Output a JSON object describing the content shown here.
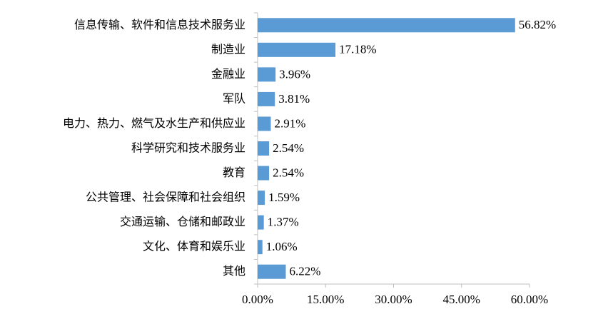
{
  "chart_data": {
    "type": "bar",
    "orientation": "horizontal",
    "categories": [
      "信息传输、软件和信息技术服务业",
      "制造业",
      "金融业",
      "军队",
      "电力、热力、燃气及水生产和供应业",
      "科学研究和技术服务业",
      "教育",
      "公共管理、社会保障和社会组织",
      "交通运输、仓储和邮政业",
      "文化、体育和娱乐业",
      "其他"
    ],
    "values": [
      56.82,
      17.18,
      3.96,
      3.81,
      2.91,
      2.54,
      2.54,
      1.59,
      1.37,
      1.06,
      6.22
    ],
    "value_labels": [
      "56.82%",
      "17.18%",
      "3.96%",
      "3.81%",
      "2.91%",
      "2.54%",
      "2.54%",
      "1.59%",
      "1.37%",
      "1.06%",
      "6.22%"
    ],
    "color": "#5b9bd5",
    "xlim": [
      0,
      60
    ],
    "xticks": [
      {
        "value": 0,
        "label": "0.00%"
      },
      {
        "value": 15,
        "label": "15.00%"
      },
      {
        "value": 30,
        "label": "30.00%"
      },
      {
        "value": 45,
        "label": "45.00%"
      },
      {
        "value": 60,
        "label": "60.00%"
      }
    ],
    "grid": false
  }
}
